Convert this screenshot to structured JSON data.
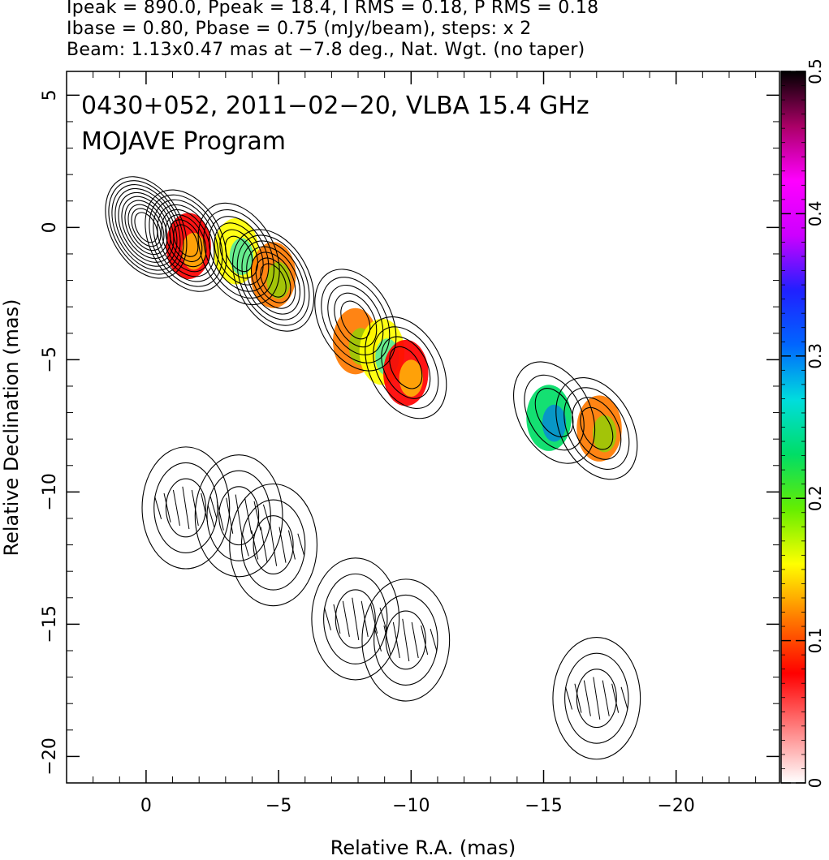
{
  "header": {
    "line1": "Ipeak = 890.0, Ppeak = 18.4, I RMS = 0.18, P RMS = 0.18",
    "line2": "Ibase = 0.80, Pbase = 0.75 (mJy/beam), steps: x 2",
    "line3": "Beam: 1.13x0.47 mas at −7.8 deg., Nat. Wgt. (no taper)"
  },
  "plot": {
    "title_line1": "0430+052, 2011−02−20, VLBA 15.4 GHz",
    "title_line2": "MOJAVE Program"
  },
  "chart_data": {
    "type": "heatmap",
    "xlabel": "Relative R.A. (mas)",
    "ylabel": "Relative Declination (mas)",
    "xlim": [
      3.0,
      -23.9
    ],
    "ylim": [
      -21.0,
      5.9
    ],
    "x_ticks": [
      0,
      -5,
      -10,
      -15,
      -20
    ],
    "x_tick_labels": [
      "0",
      "−5",
      "−10",
      "−15",
      "−20"
    ],
    "y_ticks": [
      5,
      0,
      -5,
      -10,
      -15,
      -20
    ],
    "y_tick_labels": [
      "5",
      "0",
      "−5",
      "−10",
      "−15",
      "−20"
    ],
    "colorbar": {
      "min": 0,
      "max": 0.5,
      "ticks": [
        0,
        0.1,
        0.2,
        0.3,
        0.4,
        0.5
      ],
      "tick_labels": [
        "0",
        "0.1",
        "0.2",
        "0.3",
        "0.4",
        "0.5"
      ],
      "colormap": [
        "#ffffff",
        "#ff8080",
        "#ff0000",
        "#ff7a00",
        "#ffff00",
        "#66ee00",
        "#00dd66",
        "#00dddd",
        "#0066ff",
        "#2020ff",
        "#cc00ff",
        "#ff00ff",
        "#aa0066",
        "#000000"
      ]
    },
    "stokes_I_components": [
      {
        "ra": 0.0,
        "dec": 0.0,
        "levels": 10
      },
      {
        "ra": -1.5,
        "dec": -0.5,
        "levels": 8
      },
      {
        "ra": -3.5,
        "dec": -1.0,
        "levels": 6
      },
      {
        "ra": -4.8,
        "dec": -2.0,
        "levels": 7
      },
      {
        "ra": -7.9,
        "dec": -3.5,
        "levels": 5
      },
      {
        "ra": -9.8,
        "dec": -5.3,
        "levels": 4
      },
      {
        "ra": -15.4,
        "dec": -7.0,
        "levels": 3
      },
      {
        "ra": -17.0,
        "dec": -7.6,
        "levels": 4
      }
    ],
    "fractional_pol_regions": [
      {
        "ra": -1.6,
        "dec": -0.7,
        "value": 0.06
      },
      {
        "ra": -3.4,
        "dec": -0.9,
        "value": 0.17
      },
      {
        "ra": -4.8,
        "dec": -1.8,
        "value": 0.12
      },
      {
        "ra": -7.9,
        "dec": -4.3,
        "value": 0.11
      },
      {
        "ra": -8.9,
        "dec": -4.7,
        "value": 0.17
      },
      {
        "ra": -9.8,
        "dec": -5.5,
        "value": 0.07
      },
      {
        "ra": -15.2,
        "dec": -7.2,
        "value": 0.22
      },
      {
        "ra": -17.1,
        "dec": -7.6,
        "value": 0.11
      }
    ],
    "polarized_intensity_components": [
      {
        "ra": -1.5,
        "dec": -10.6
      },
      {
        "ra": -3.5,
        "dec": -10.9
      },
      {
        "ra": -4.8,
        "dec": -12.0
      },
      {
        "ra": -7.9,
        "dec": -14.8
      },
      {
        "ra": -9.8,
        "dec": -15.6
      },
      {
        "ra": -17.0,
        "dec": -17.8
      }
    ]
  }
}
